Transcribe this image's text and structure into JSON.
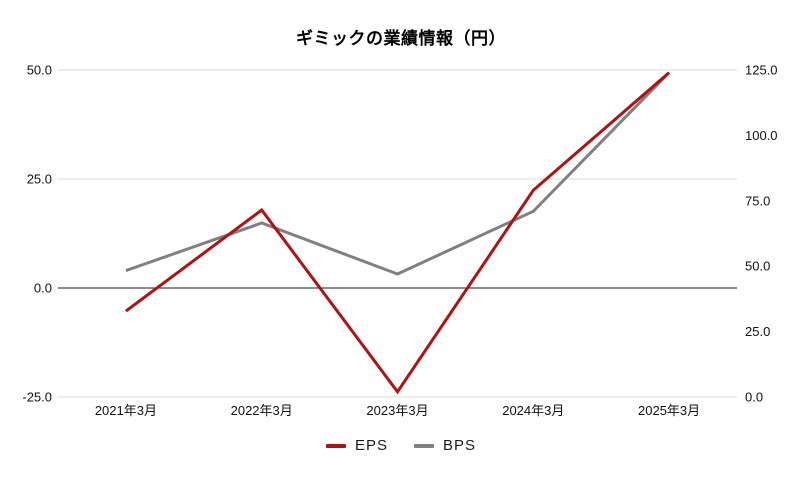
{
  "chart_data": {
    "type": "line",
    "title": "ギミックの業績情報（円）",
    "categories": [
      "2021年3月",
      "2022年3月",
      "2023年3月",
      "2024年3月",
      "2025年3月"
    ],
    "series": [
      {
        "name": "EPS",
        "axis": "left",
        "color": "#B01212",
        "values": [
          -5.3,
          17.9,
          -23.8,
          22.4,
          49.4
        ]
      },
      {
        "name": "BPS",
        "axis": "right",
        "color": "#808080",
        "values": [
          48.3,
          66.5,
          47.0,
          71.0,
          124.0
        ]
      }
    ],
    "left_axis": {
      "min": -25,
      "max": 50,
      "ticks": [
        50.0,
        25.0,
        0.0,
        -25.0
      ]
    },
    "right_axis": {
      "min": 0,
      "max": 125,
      "ticks": [
        125.0,
        100.0,
        75.0,
        50.0,
        25.0,
        0.0
      ]
    },
    "grid": {
      "line_color": "#D9D9D9",
      "zero_line_color": "#1A1A1A"
    },
    "legend_position": "bottom"
  }
}
